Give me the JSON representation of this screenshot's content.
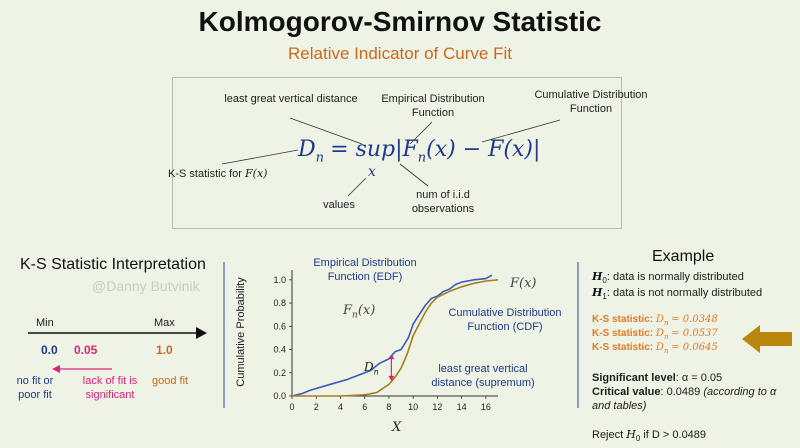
{
  "title": "Kolmogorov-Smirnov Statistic",
  "subtitle": "Relative Indicator of Curve Fit",
  "formula": {
    "lhs": "D",
    "lhs_sub": "n",
    "rhs": "= sup|F",
    "rhs_sub": "n",
    "rhs_tail": "(x) − F(x)|",
    "under": "x",
    "ann_least_great": "least great vertical distance",
    "ann_edf": "Empirical Distribution Function",
    "ann_cdf": "Cumulative Distribution Function",
    "ann_stat_prefix": "K-S statistic for",
    "ann_stat_math": "F(x)",
    "ann_values": "values",
    "ann_iid": "num of i.i.d observations"
  },
  "interpretation": {
    "heading": "K-S Statistic Interpretation",
    "watermark": "@Danny Butvinik",
    "min_label": "Min",
    "max_label": "Max",
    "v0": "0.0",
    "v05": "0.05",
    "v1": "1.0",
    "no_fit": "no fit or poor fit",
    "lack_fit": "lack of fit is significant",
    "good_fit": "good fit",
    "colors": {
      "v0": "#1f3a8a",
      "v05": "#d6247a",
      "v1": "#c8691c"
    }
  },
  "chart_data": {
    "type": "line",
    "ylabel": "Cumulative Probability",
    "xlabel": "X",
    "xlim": [
      0,
      17
    ],
    "ylim": [
      0,
      1.05
    ],
    "x_ticks": [
      "0",
      "2",
      "4",
      "6",
      "8",
      "10",
      "12",
      "14",
      "16"
    ],
    "y_ticks": [
      "0.0",
      "0.2",
      "0.4",
      "0.6",
      "0.8",
      "1.0"
    ],
    "series": [
      {
        "name": "F_n(x)",
        "color": "#3a5bb8",
        "x": [
          0,
          0.8,
          1.5,
          2.5,
          3.5,
          4.5,
          5.5,
          6.5,
          7.2,
          8,
          8.5,
          9,
          9.6,
          10,
          10.5,
          11,
          11.5,
          12,
          12.5,
          13,
          13.5,
          14,
          15,
          16,
          16.5
        ],
        "y": [
          0.0,
          0.02,
          0.05,
          0.08,
          0.11,
          0.14,
          0.18,
          0.22,
          0.28,
          0.32,
          0.38,
          0.4,
          0.5,
          0.62,
          0.7,
          0.78,
          0.84,
          0.86,
          0.9,
          0.92,
          0.96,
          0.98,
          1.0,
          1.01,
          1.04
        ]
      },
      {
        "name": "F(x)",
        "color": "#a57f1e",
        "x": [
          0,
          2,
          4,
          6,
          7,
          8,
          8.5,
          9,
          9.5,
          10,
          10.5,
          11,
          11.5,
          12,
          13,
          14,
          15,
          16,
          17
        ],
        "y": [
          0.0,
          0.0,
          0.0,
          0.01,
          0.03,
          0.1,
          0.16,
          0.24,
          0.36,
          0.52,
          0.62,
          0.72,
          0.8,
          0.85,
          0.9,
          0.94,
          0.97,
          0.99,
          1.0
        ]
      }
    ],
    "annotations": {
      "edf": "Empirical Distribution Function (EDF)",
      "cdf": "Cumulative Distribution Function (CDF)",
      "fn_label": "F",
      "fn_sub": "n",
      "fn_tail": "(x)",
      "fx_label": "F(x)",
      "dn_label": "D",
      "dn_sub": "n",
      "supremum": "least great vertical distance (supremum)"
    },
    "dn_at_x": 8.2,
    "dn_y": [
      0.13,
      0.36
    ]
  },
  "example": {
    "heading": "Example",
    "h0_sym": "H",
    "h0_sub": "0",
    "h0_text": ": data is normally distributed",
    "h1_sym": "H",
    "h1_sub": "1",
    "h1_text": ": data is not normally distributed",
    "ks_label": "K-S statistic:",
    "ks_math_prefix": "D",
    "ks_math_sub": "n",
    "ks_values": [
      "= 0.0348",
      "= 0.0537",
      "= 0.0645"
    ],
    "sig_label": "Significant level",
    "sig_value": ": α = 0.05",
    "crit_label": "Critical value",
    "crit_value": ": 0.0489",
    "crit_note": "(according to α and tables)",
    "reject_prefix": "Reject",
    "reject_math": "H",
    "reject_sub": "0",
    "reject_tail": "if D > 0.0489",
    "arrow_color": "#b8860b"
  }
}
